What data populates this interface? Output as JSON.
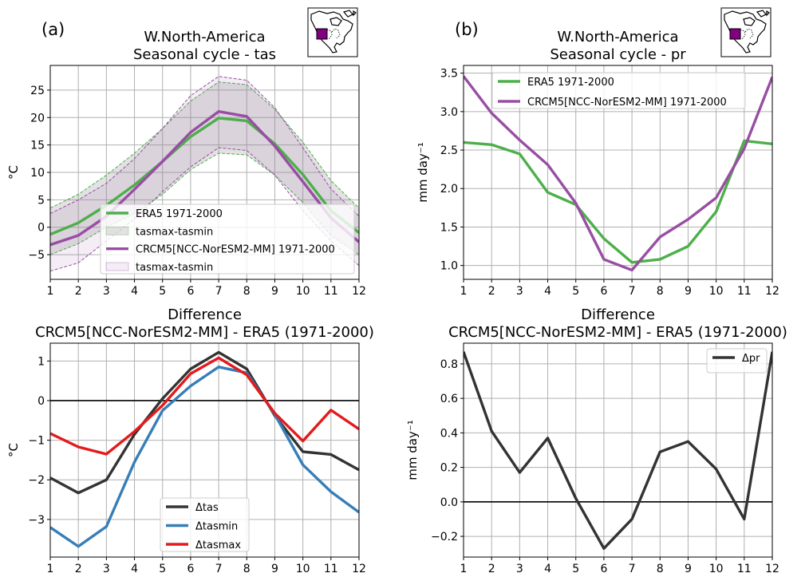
{
  "chart_data": [
    {
      "type": "line",
      "panel_label": "(a)",
      "title": [
        "W.North-America",
        "Seasonal cycle - tas"
      ],
      "xlabel": "",
      "ylabel": "°C",
      "x": [
        1,
        2,
        3,
        4,
        5,
        6,
        7,
        8,
        9,
        10,
        11,
        12
      ],
      "xticks": [
        "1",
        "2",
        "3",
        "4",
        "5",
        "6",
        "7",
        "8",
        "9",
        "10",
        "11",
        "12"
      ],
      "xlim": [
        1,
        12
      ],
      "ylim": [
        -9.5,
        29.5
      ],
      "yticks": [
        -5,
        0,
        5,
        10,
        15,
        20,
        25
      ],
      "grid": true,
      "legend_position": "lower center",
      "series": [
        {
          "name": "ERA5 1971-2000",
          "color": "#4daf4a",
          "values": [
            -1.3,
            0.8,
            4.0,
            7.7,
            12.0,
            16.5,
            19.9,
            19.4,
            15.2,
            9.6,
            3.0,
            -1.0
          ]
        },
        {
          "name": "CRCM5[NCC-NorESM2-MM] 1971-2000",
          "color": "#984ea3",
          "values": [
            -3.2,
            -1.5,
            2.0,
            6.9,
            12.0,
            17.3,
            21.1,
            20.2,
            14.8,
            8.3,
            1.7,
            -2.7
          ]
        }
      ],
      "bands": [
        {
          "name": "tasmax-tasmin",
          "color": "#4daf4a",
          "upper": [
            3.5,
            6.0,
            9.5,
            13.5,
            18.0,
            23.0,
            26.5,
            26.0,
            21.5,
            15.5,
            8.5,
            3.5
          ],
          "lower": [
            -5.0,
            -3.0,
            0.0,
            2.5,
            6.0,
            10.5,
            13.5,
            13.2,
            9.5,
            4.5,
            -1.5,
            -5.0
          ]
        },
        {
          "name": "tasmax-tasmin",
          "color": "#984ea3",
          "upper": [
            2.5,
            5.0,
            8.0,
            12.5,
            18.0,
            24.0,
            27.5,
            26.8,
            21.8,
            14.5,
            7.0,
            2.0
          ],
          "lower": [
            -8.0,
            -6.5,
            -2.5,
            1.5,
            6.5,
            11.0,
            14.5,
            14.0,
            9.5,
            3.0,
            -2.5,
            -7.0
          ]
        }
      ]
    },
    {
      "type": "line",
      "panel_label": "(b)",
      "title": [
        "W.North-America",
        "Seasonal cycle - pr"
      ],
      "xlabel": "",
      "ylabel": "mm day⁻¹",
      "x": [
        1,
        2,
        3,
        4,
        5,
        6,
        7,
        8,
        9,
        10,
        11,
        12
      ],
      "xticks": [
        "1",
        "2",
        "3",
        "4",
        "5",
        "6",
        "7",
        "8",
        "9",
        "10",
        "11",
        "12"
      ],
      "xlim": [
        1,
        12
      ],
      "ylim": [
        0.82,
        3.6
      ],
      "yticks": [
        1.0,
        1.5,
        2.0,
        2.5,
        3.0,
        3.5
      ],
      "grid": true,
      "legend_position": "upper center",
      "series": [
        {
          "name": "ERA5 1971-2000",
          "color": "#4daf4a",
          "values": [
            2.6,
            2.57,
            2.45,
            1.95,
            1.79,
            1.35,
            1.04,
            1.08,
            1.25,
            1.7,
            2.62,
            2.58
          ]
        },
        {
          "name": "CRCM5[NCC-NorESM2-MM] 1971-2000",
          "color": "#984ea3",
          "values": [
            3.46,
            2.98,
            2.63,
            2.31,
            1.81,
            1.08,
            0.94,
            1.37,
            1.6,
            1.88,
            2.52,
            3.45
          ]
        }
      ]
    },
    {
      "type": "line",
      "panel_label": "",
      "title": [
        "Difference",
        "CRCM5[NCC-NorESM2-MM] - ERA5 (1971-2000)"
      ],
      "xlabel": "",
      "ylabel": "°C",
      "x": [
        1,
        2,
        3,
        4,
        5,
        6,
        7,
        8,
        9,
        10,
        11,
        12
      ],
      "xticks": [
        "1",
        "2",
        "3",
        "4",
        "5",
        "6",
        "7",
        "8",
        "9",
        "10",
        "11",
        "12"
      ],
      "xlim": [
        1,
        12
      ],
      "ylim": [
        -3.95,
        1.45
      ],
      "yticks": [
        -3,
        -2,
        -1,
        0,
        1
      ],
      "grid": true,
      "zero_line": true,
      "legend_position": "lower center",
      "series": [
        {
          "name": "Δtas",
          "color": "#333333",
          "values": [
            -1.95,
            -2.33,
            -2.0,
            -0.85,
            0.05,
            0.8,
            1.22,
            0.8,
            -0.38,
            -1.29,
            -1.36,
            -1.75
          ]
        },
        {
          "name": "Δtasmin",
          "color": "#377eb8",
          "values": [
            -3.2,
            -3.68,
            -3.18,
            -1.55,
            -0.25,
            0.37,
            0.85,
            0.7,
            -0.35,
            -1.62,
            -2.3,
            -2.82
          ]
        },
        {
          "name": "Δtasmax",
          "color": "#e41a1c",
          "values": [
            -0.83,
            -1.17,
            -1.35,
            -0.78,
            -0.12,
            0.68,
            1.08,
            0.65,
            -0.32,
            -1.02,
            -0.24,
            -0.72
          ]
        }
      ]
    },
    {
      "type": "line",
      "panel_label": "",
      "title": [
        "Difference",
        "CRCM5[NCC-NorESM2-MM] - ERA5 (1971-2000)"
      ],
      "xlabel": "",
      "ylabel": "mm day⁻¹",
      "x": [
        1,
        2,
        3,
        4,
        5,
        6,
        7,
        8,
        9,
        10,
        11,
        12
      ],
      "xticks": [
        "1",
        "2",
        "3",
        "4",
        "5",
        "6",
        "7",
        "8",
        "9",
        "10",
        "11",
        "12"
      ],
      "xlim": [
        1,
        12
      ],
      "ylim": [
        -0.32,
        0.92
      ],
      "yticks": [
        -0.2,
        0.0,
        0.2,
        0.4,
        0.6,
        0.8
      ],
      "grid": true,
      "zero_line": true,
      "legend_position": "upper right",
      "series": [
        {
          "name": "Δpr",
          "color": "#333333",
          "values": [
            0.87,
            0.41,
            0.17,
            0.37,
            0.02,
            -0.27,
            -0.1,
            0.29,
            0.35,
            0.19,
            -0.1,
            0.87
          ]
        }
      ]
    }
  ]
}
